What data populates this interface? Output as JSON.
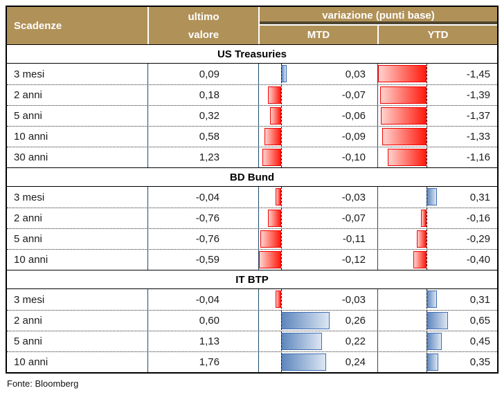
{
  "header": {
    "scadenze": "Scadenze",
    "ultimo_line1": "ultimo",
    "ultimo_line2": "valore",
    "variazione": "variazione (punti base)",
    "mtd": "MTD",
    "ytd": "YTD"
  },
  "footer": {
    "source": "Fonte: Bloomberg"
  },
  "colors": {
    "header_background": "#b09158",
    "header_text": "#ffffff",
    "column_separator": "#1c4c6e",
    "negative_bar": "#ff0000",
    "positive_bar": "#5d86bd"
  },
  "chart_data": {
    "type": "table",
    "title": "Scadenze - variazione (punti base)",
    "columns": [
      "Scadenze",
      "ultimo valore",
      "MTD",
      "YTD"
    ],
    "value_format": "comma-decimal",
    "bar_style": {
      "negative": "red gradient bar extending left of dashed zero axis",
      "positive": "blue gradient bar extending right of dashed zero axis"
    },
    "sections": [
      {
        "title": "US Treasuries",
        "rows": [
          {
            "label": "3 mesi",
            "ultimo": "0,09",
            "mtd": "0,03",
            "ytd": "-1,45"
          },
          {
            "label": "2 anni",
            "ultimo": "0,18",
            "mtd": "-0,07",
            "ytd": "-1,39"
          },
          {
            "label": "5 anni",
            "ultimo": "0,32",
            "mtd": "-0,06",
            "ytd": "-1,37"
          },
          {
            "label": "10 anni",
            "ultimo": "0,58",
            "mtd": "-0,09",
            "ytd": "-1,33"
          },
          {
            "label": "30 anni",
            "ultimo": "1,23",
            "mtd": "-0,10",
            "ytd": "-1,16"
          }
        ]
      },
      {
        "title": "BD Bund",
        "rows": [
          {
            "label": "3 mesi",
            "ultimo": "-0,04",
            "mtd": "-0,03",
            "ytd": "0,31"
          },
          {
            "label": "2 anni",
            "ultimo": "-0,76",
            "mtd": "-0,07",
            "ytd": "-0,16"
          },
          {
            "label": "5 anni",
            "ultimo": "-0,76",
            "mtd": "-0,11",
            "ytd": "-0,29"
          },
          {
            "label": "10 anni",
            "ultimo": "-0,59",
            "mtd": "-0,12",
            "ytd": "-0,40"
          }
        ]
      },
      {
        "title": "IT BTP",
        "rows": [
          {
            "label": "3 mesi",
            "ultimo": "-0,04",
            "mtd": "-0,03",
            "ytd": "0,31"
          },
          {
            "label": "2 anni",
            "ultimo": "0,60",
            "mtd": "0,26",
            "ytd": "0,65"
          },
          {
            "label": "5 anni",
            "ultimo": "1,13",
            "mtd": "0,22",
            "ytd": "0,45"
          },
          {
            "label": "10 anni",
            "ultimo": "1,76",
            "mtd": "0,24",
            "ytd": "0,35"
          }
        ]
      }
    ]
  }
}
